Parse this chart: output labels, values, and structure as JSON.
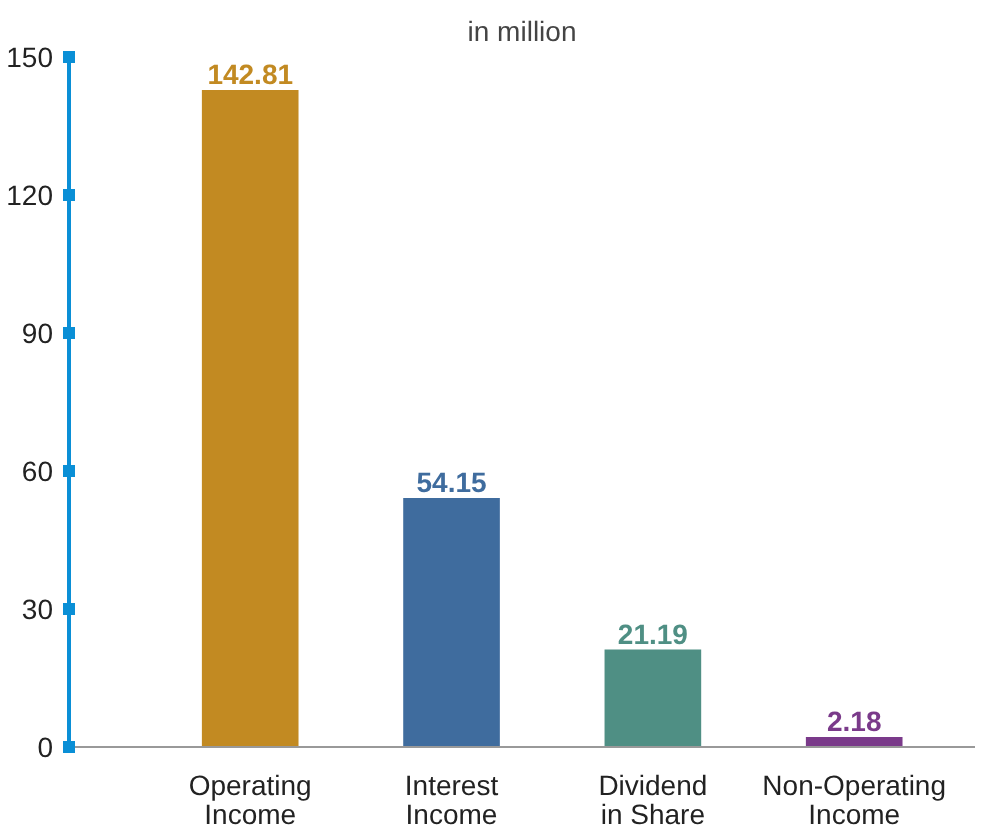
{
  "chart_data": {
    "type": "bar",
    "title": "in million",
    "categories": [
      "Operating\nIncome",
      "Interest\nIncome",
      "Dividend\nin Share",
      "Non-Operating\nIncome"
    ],
    "values": [
      142.81,
      54.15,
      21.19,
      2.18
    ],
    "colors": [
      "#c28a22",
      "#3f6c9e",
      "#4f8f84",
      "#7a3a8a"
    ],
    "ylim": [
      0,
      150
    ],
    "yticks": [
      0,
      30,
      60,
      90,
      120,
      150
    ],
    "data_labels": true
  }
}
